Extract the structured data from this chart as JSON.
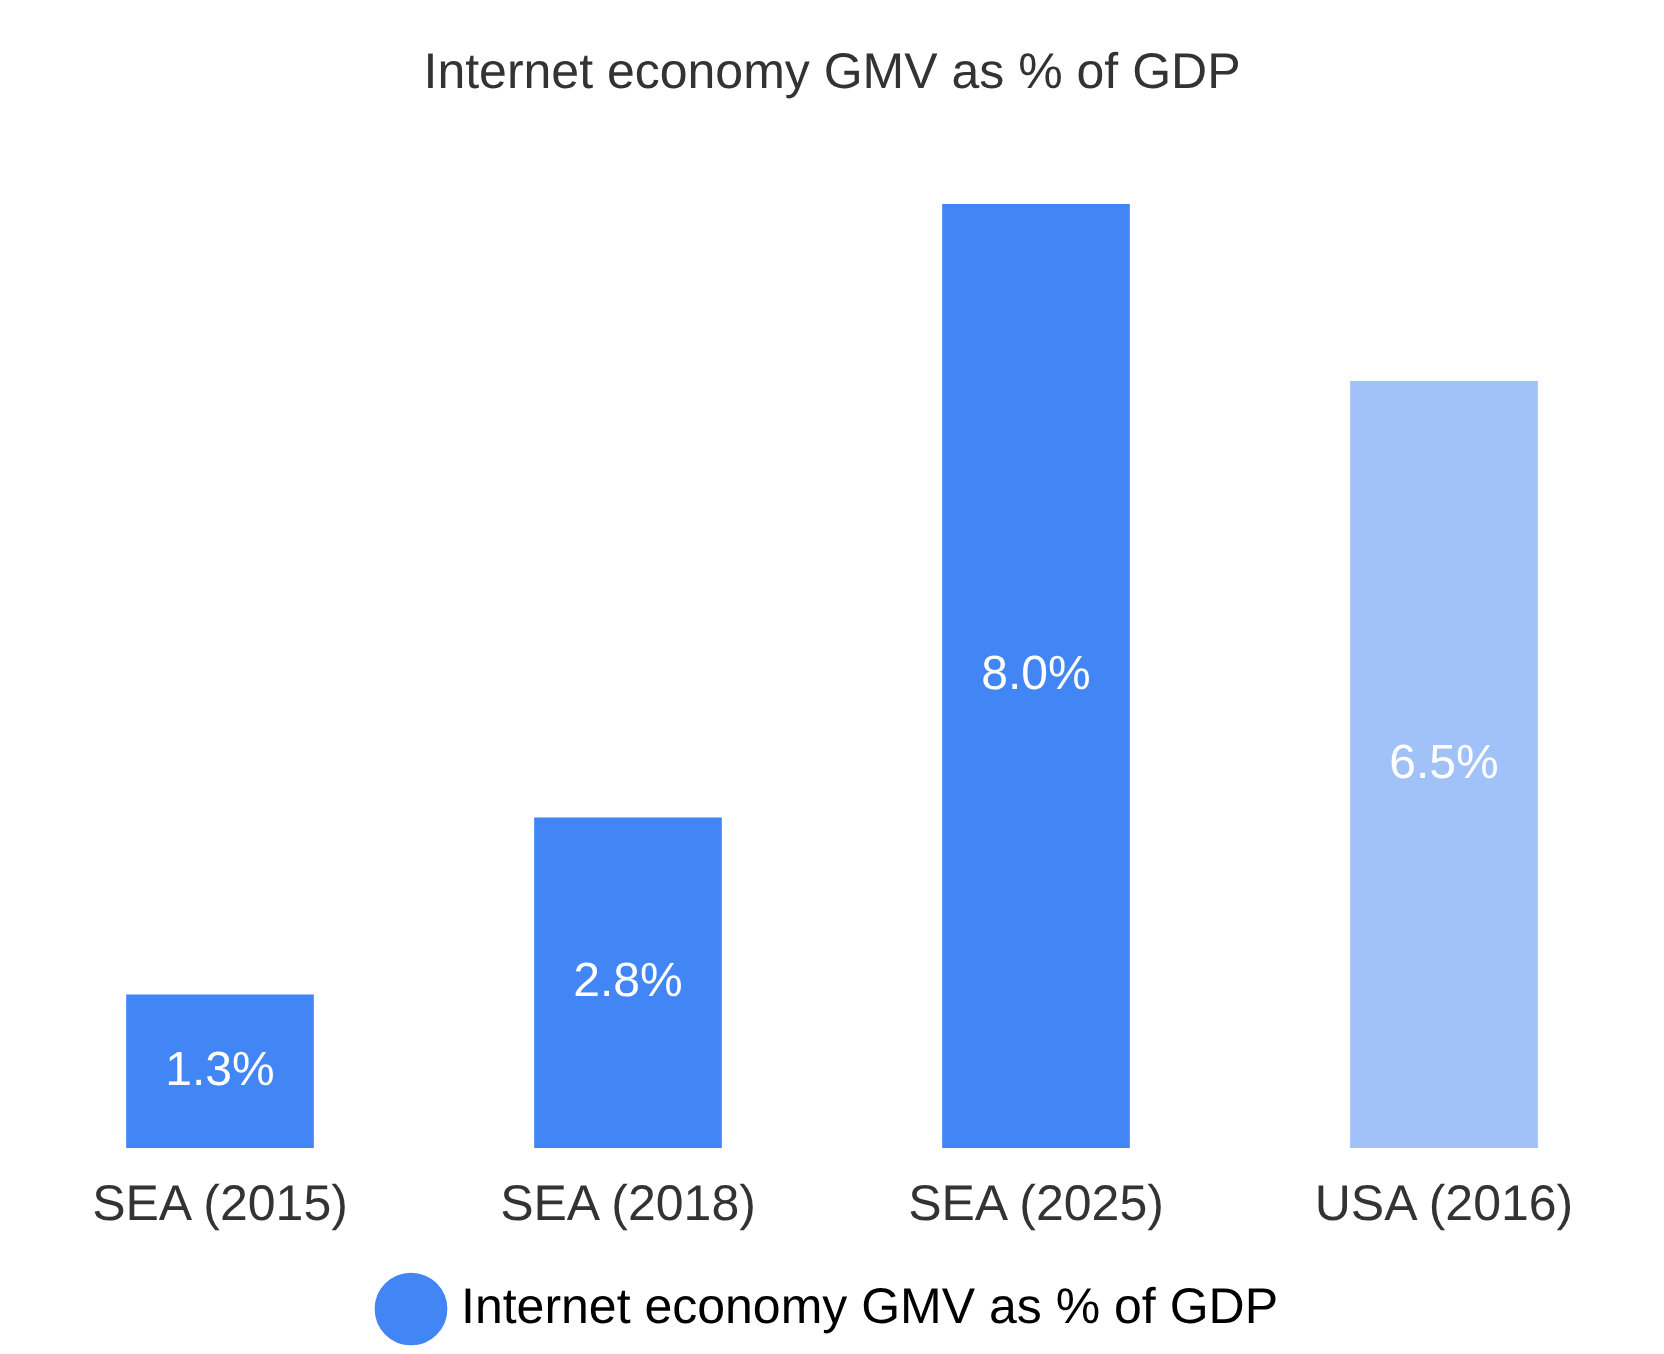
{
  "chart_data": {
    "type": "bar",
    "title": "Internet economy GMV as % of GDP",
    "categories": [
      "SEA (2015)",
      "SEA (2018)",
      "SEA (2025)",
      "USA (2016)"
    ],
    "series": [
      {
        "name": "Internet economy GMV as % of GDP",
        "color": "#4285f4",
        "values": [
          1.3,
          2.8,
          8.0,
          6.5
        ],
        "colors": [
          "#4285f4",
          "#4285f4",
          "#4285f4",
          "#a0c2f9"
        ],
        "value_labels": [
          "1.3%",
          "2.8%",
          "8.0%",
          "6.5%"
        ]
      }
    ],
    "legend": "bottom",
    "grid": false
  }
}
